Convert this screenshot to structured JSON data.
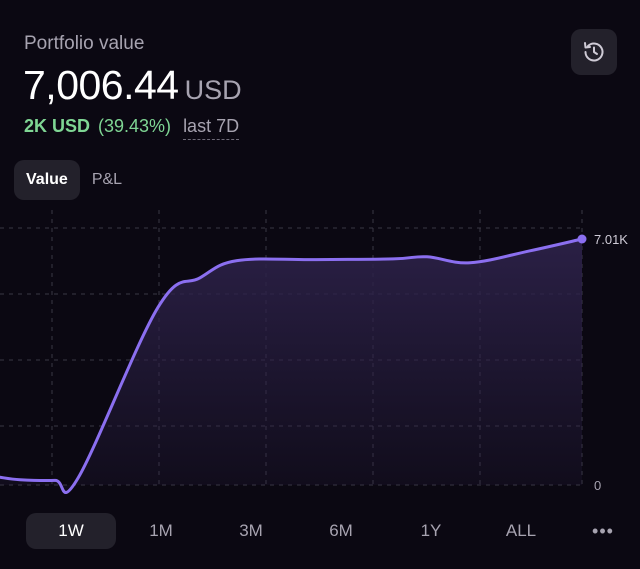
{
  "portfolio": {
    "title": "Portfolio value",
    "value": "7,006.44",
    "currency": "USD",
    "change_abs": "2K USD",
    "change_pct": "(39.43%)",
    "range_label": "last 7D"
  },
  "header": {
    "history_icon": "history-icon"
  },
  "view_tabs": {
    "value_label": "Value",
    "pnl_label": "P&L",
    "active": "Value"
  },
  "chart_data": {
    "type": "area",
    "x": [
      0,
      1,
      2,
      3,
      4,
      5,
      6,
      7,
      8,
      9,
      10,
      11,
      12
    ],
    "series": [
      {
        "values": [
          220,
          150,
          130,
          195,
          5060,
          5900,
          6390,
          6420,
          6440,
          6500,
          6330,
          6670,
          7006.44
        ]
      }
    ],
    "y_tick_labels": [
      "7.01K",
      "0"
    ],
    "ylim": [
      0,
      7006.44
    ],
    "grid": true,
    "colors": {
      "line": "#8b6ff0",
      "fill_top": "#2c2148",
      "grid": "#3a3744"
    }
  },
  "periods": {
    "items": [
      "1W",
      "1M",
      "3M",
      "6M",
      "1Y",
      "ALL"
    ],
    "active": "1W",
    "more_label": "•••"
  }
}
